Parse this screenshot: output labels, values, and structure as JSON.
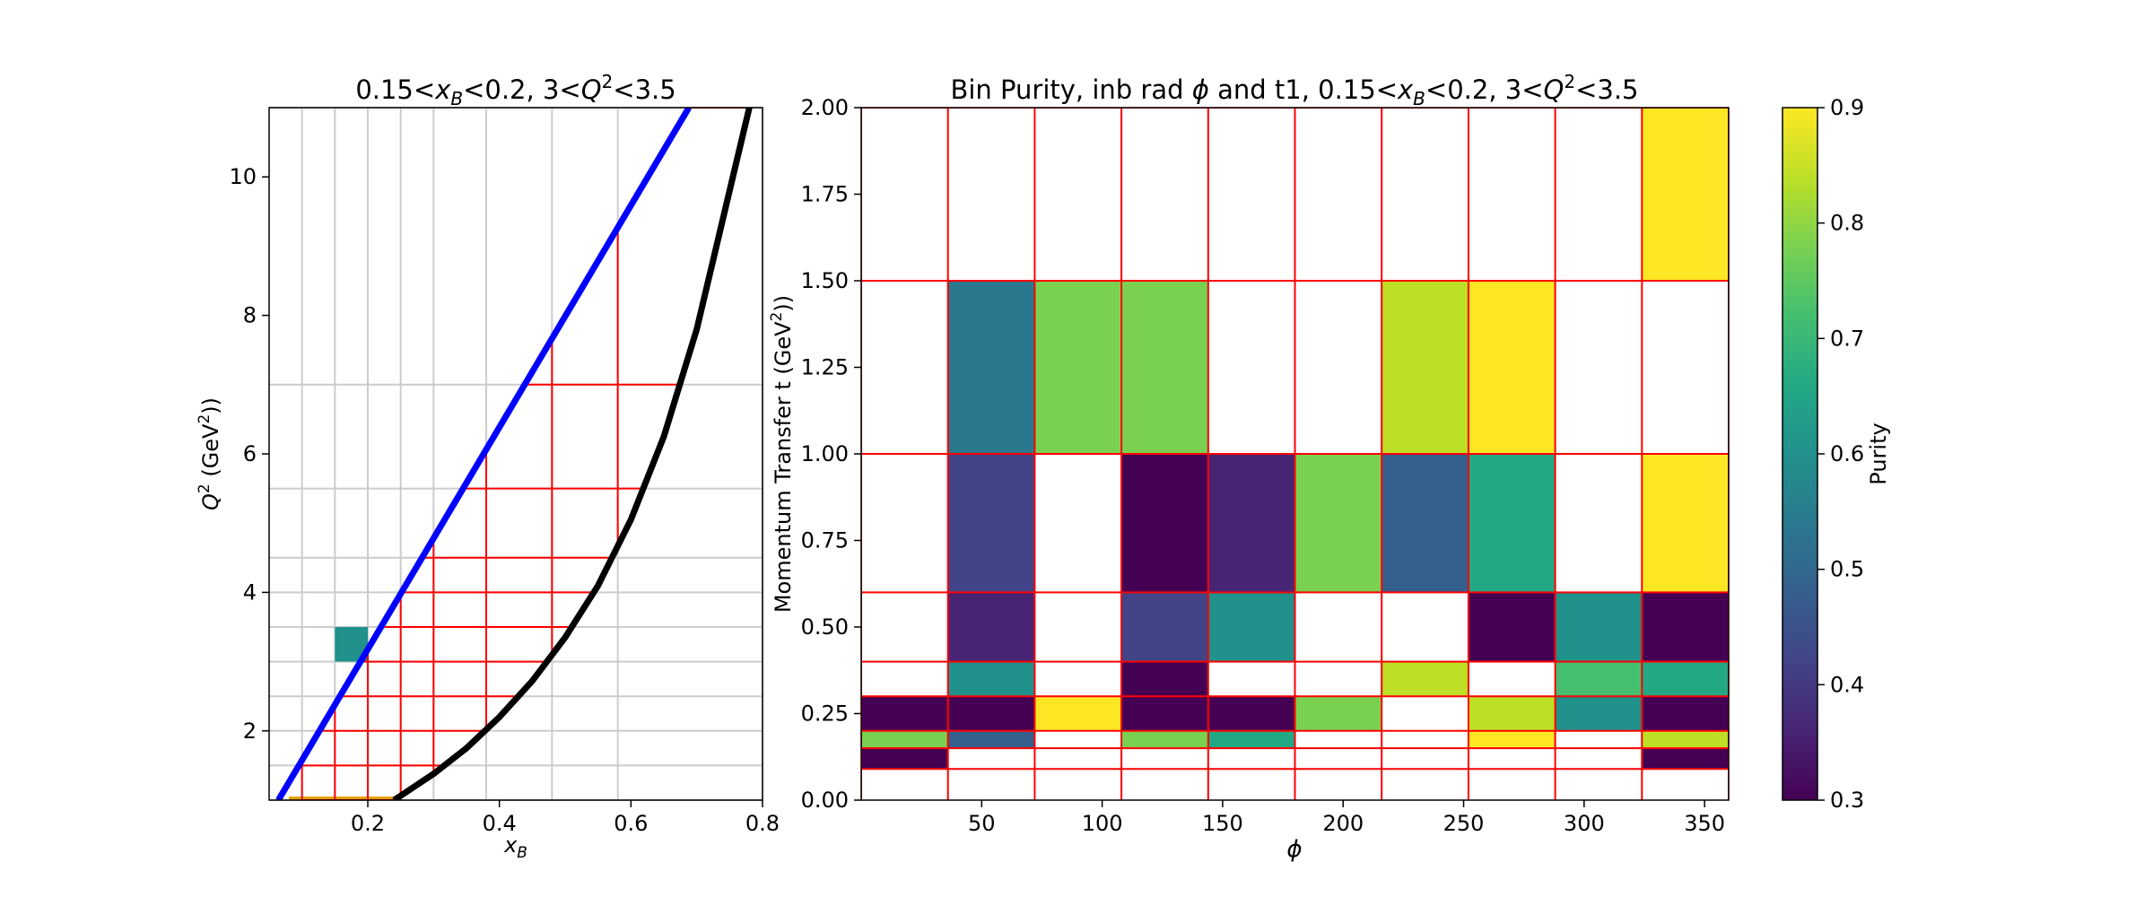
{
  "left_panel": {
    "title_parts": [
      "0.15<",
      "x",
      "B",
      "<0.2, 3<",
      "Q",
      "2",
      "<3.5"
    ],
    "xlabel_parts": [
      "x",
      "B"
    ],
    "ylabel_parts": [
      "Q",
      "2",
      " (GeV",
      "2",
      "))"
    ]
  },
  "right_panel": {
    "title_parts": [
      "Bin Purity, inb rad ",
      "ϕ",
      " and t1, 0.15<",
      "x",
      "B",
      "<0.2, 3<",
      "Q",
      "2",
      "<3.5"
    ],
    "xlabel": "ϕ",
    "ylabel_parts": [
      "Momentum Transfer t (GeV",
      "2",
      "))"
    ],
    "colorbar_label": "Purity"
  },
  "chart_data": [
    {
      "type": "line",
      "panel": "kinematic-coverage",
      "xlim": [
        0.05,
        0.8
      ],
      "ylim": [
        1,
        11
      ],
      "xticks": [
        0.2,
        0.4,
        0.6,
        0.8
      ],
      "yticks": [
        2,
        4,
        6,
        8,
        10
      ],
      "grid": true,
      "grid_x": [
        0.1,
        0.15,
        0.2,
        0.25,
        0.3,
        0.38,
        0.48,
        0.58,
        0.8
      ],
      "grid_y": [
        1.0,
        1.5,
        2.0,
        2.5,
        3.0,
        3.5,
        4.0,
        4.5,
        5.5,
        7.0,
        11.0
      ],
      "series": [
        {
          "color": "#0000ff",
          "x": [
            0.064,
            0.688
          ],
          "y": [
            1.0,
            11.0
          ]
        },
        {
          "color": "#000000",
          "x": [
            0.24,
            0.3,
            0.35,
            0.4,
            0.45,
            0.5,
            0.55,
            0.6,
            0.65,
            0.7,
            0.75,
            0.78
          ],
          "y": [
            1.0,
            1.38,
            1.75,
            2.2,
            2.72,
            3.35,
            4.1,
            5.05,
            6.25,
            7.8,
            9.8,
            11.0
          ]
        }
      ],
      "bin_x_edges": [
        0.1,
        0.15,
        0.2,
        0.25,
        0.3,
        0.38,
        0.48,
        0.58,
        0.8
      ],
      "bin_y_edges": [
        1.0,
        1.5,
        2.0,
        2.5,
        3.0,
        3.5,
        4.0,
        4.5,
        5.5,
        7.0,
        11.0
      ],
      "highlight_bin": {
        "x": [
          0.15,
          0.2
        ],
        "y": [
          3.0,
          3.5
        ],
        "color": "#21918c"
      },
      "highlight_base": {
        "x": [
          0.08,
          0.25
        ],
        "y": 1.0,
        "color": "#e69f00"
      }
    },
    {
      "type": "heatmap",
      "panel": "purity",
      "xlim": [
        0,
        360
      ],
      "ylim": [
        0,
        2
      ],
      "xticks": [
        50,
        100,
        150,
        200,
        250,
        300,
        350
      ],
      "yticks": [
        "0.00",
        "0.25",
        "0.50",
        "0.75",
        "1.00",
        "1.25",
        "1.50",
        "1.75",
        "2.00"
      ],
      "x_edges": [
        0,
        36,
        72,
        108,
        144,
        180,
        216,
        252,
        288,
        324,
        360
      ],
      "y_edges": [
        0.09,
        0.15,
        0.2,
        0.3,
        0.4,
        0.6,
        1.0,
        1.5,
        2.0
      ],
      "colormap": "viridis",
      "vmin": 0.3,
      "vmax": 0.9,
      "colorbar_ticks": [
        0.3,
        0.4,
        0.5,
        0.6,
        0.7,
        0.8,
        0.9
      ],
      "cells": [
        {
          "x": 0,
          "y": 0,
          "v": 0.3
        },
        {
          "x": 9,
          "y": 0,
          "v": 0.3
        },
        {
          "x": 0,
          "y": 1,
          "v": 0.76
        },
        {
          "x": 1,
          "y": 1,
          "v": 0.48
        },
        {
          "x": 3,
          "y": 1,
          "v": 0.76
        },
        {
          "x": 4,
          "y": 1,
          "v": 0.66
        },
        {
          "x": 7,
          "y": 1,
          "v": 0.9
        },
        {
          "x": 9,
          "y": 1,
          "v": 0.82
        },
        {
          "x": 0,
          "y": 2,
          "v": 0.3
        },
        {
          "x": 1,
          "y": 2,
          "v": 0.3
        },
        {
          "x": 2,
          "y": 2,
          "v": 0.9
        },
        {
          "x": 3,
          "y": 2,
          "v": 0.3
        },
        {
          "x": 4,
          "y": 2,
          "v": 0.3
        },
        {
          "x": 5,
          "y": 2,
          "v": 0.76
        },
        {
          "x": 7,
          "y": 2,
          "v": 0.85
        },
        {
          "x": 8,
          "y": 2,
          "v": 0.6
        },
        {
          "x": 9,
          "y": 2,
          "v": 0.3
        },
        {
          "x": 1,
          "y": 3,
          "v": 0.62
        },
        {
          "x": 3,
          "y": 3,
          "v": 0.3
        },
        {
          "x": 6,
          "y": 3,
          "v": 0.82
        },
        {
          "x": 8,
          "y": 3,
          "v": 0.7
        },
        {
          "x": 9,
          "y": 3,
          "v": 0.64
        },
        {
          "x": 1,
          "y": 4,
          "v": 0.36
        },
        {
          "x": 3,
          "y": 4,
          "v": 0.42
        },
        {
          "x": 4,
          "y": 4,
          "v": 0.58
        },
        {
          "x": 7,
          "y": 4,
          "v": 0.3
        },
        {
          "x": 8,
          "y": 4,
          "v": 0.58
        },
        {
          "x": 9,
          "y": 4,
          "v": 0.3
        },
        {
          "x": 1,
          "y": 5,
          "v": 0.43
        },
        {
          "x": 3,
          "y": 5,
          "v": 0.3
        },
        {
          "x": 4,
          "y": 5,
          "v": 0.38
        },
        {
          "x": 5,
          "y": 5,
          "v": 0.76
        },
        {
          "x": 6,
          "y": 5,
          "v": 0.5
        },
        {
          "x": 7,
          "y": 5,
          "v": 0.68
        },
        {
          "x": 9,
          "y": 5,
          "v": 0.9
        },
        {
          "x": 1,
          "y": 6,
          "v": 0.52
        },
        {
          "x": 2,
          "y": 6,
          "v": 0.78
        },
        {
          "x": 3,
          "y": 6,
          "v": 0.76
        },
        {
          "x": 6,
          "y": 6,
          "v": 0.82
        },
        {
          "x": 7,
          "y": 6,
          "v": 0.88
        },
        {
          "x": 9,
          "y": 7,
          "v": 0.9
        }
      ]
    }
  ]
}
